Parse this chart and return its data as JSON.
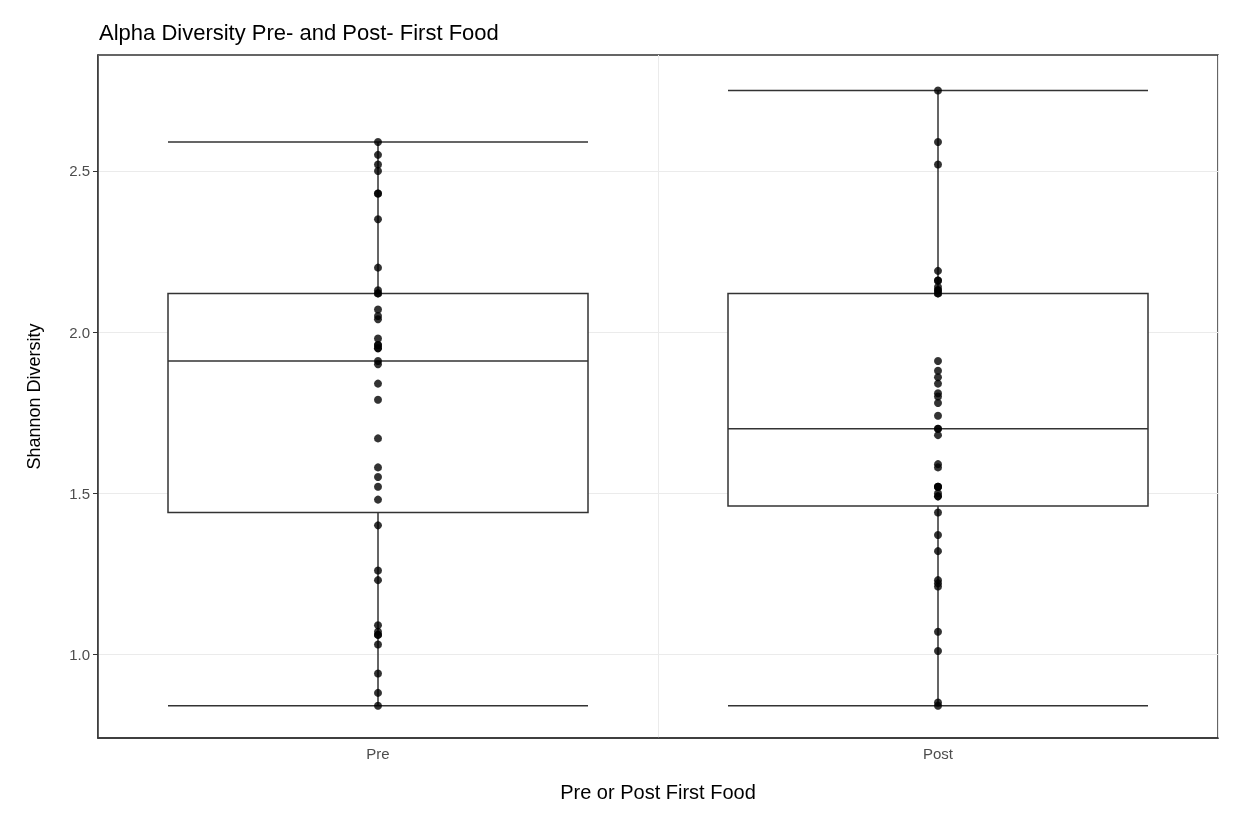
{
  "chart_data": {
    "type": "box",
    "title": "Alpha Diversity Pre- and Post- First Food",
    "xlabel": "Pre or Post First Food",
    "ylabel": "Shannon Diversity",
    "categories": [
      "Pre",
      "Post"
    ],
    "ylim": [
      0.74,
      2.86
    ],
    "yticks": [
      {
        "value": 1,
        "label": "1.0"
      },
      {
        "value": 1.5,
        "label": "1.5"
      },
      {
        "value": 2,
        "label": "2.0"
      },
      {
        "value": 2.5,
        "label": "2.5"
      }
    ],
    "grid": true,
    "marker": "circle",
    "series": [
      {
        "type": "box",
        "color": "#333333",
        "boxes": [
          {
            "low": 0.84,
            "q1": 1.44,
            "median": 1.91,
            "q3": 2.12,
            "high": 2.59
          },
          {
            "low": 0.84,
            "q1": 1.46,
            "median": 1.7,
            "q3": 2.12,
            "high": 2.75
          }
        ]
      },
      {
        "type": "scatter",
        "color": "#000000",
        "x": [
          "Pre",
          "Pre",
          "Pre",
          "Pre",
          "Pre",
          "Pre",
          "Pre",
          "Pre",
          "Pre",
          "Pre",
          "Pre",
          "Pre",
          "Pre",
          "Pre",
          "Pre",
          "Pre",
          "Pre",
          "Pre",
          "Pre",
          "Pre",
          "Pre",
          "Pre",
          "Pre",
          "Pre",
          "Pre",
          "Pre",
          "Pre",
          "Pre",
          "Pre",
          "Pre",
          "Pre",
          "Pre",
          "Pre",
          "Pre",
          "Pre",
          "Pre",
          "Pre",
          "Pre",
          "Pre",
          "Post",
          "Post",
          "Post",
          "Post",
          "Post",
          "Post",
          "Post",
          "Post",
          "Post",
          "Post",
          "Post",
          "Post",
          "Post",
          "Post",
          "Post",
          "Post",
          "Post",
          "Post",
          "Post",
          "Post",
          "Post",
          "Post",
          "Post",
          "Post",
          "Post",
          "Post",
          "Post",
          "Post",
          "Post",
          "Post",
          "Post",
          "Post",
          "Post",
          "Post",
          "Post",
          "Post",
          "Post",
          "Post",
          "Post",
          "Post"
        ],
        "values": [
          2.52,
          2.43,
          2.59,
          2.5,
          2.43,
          2.55,
          2.35,
          2.2,
          2.12,
          2.13,
          2.12,
          2.07,
          1.98,
          1.95,
          1.96,
          1.95,
          1.9,
          1.96,
          1.91,
          2.04,
          2.05,
          1.84,
          1.79,
          1.67,
          1.55,
          1.52,
          1.58,
          1.48,
          1.4,
          1.26,
          1.23,
          1.09,
          1.06,
          1.07,
          1.06,
          1.03,
          0.94,
          0.84,
          0.88,
          2.75,
          2.59,
          2.52,
          2.13,
          2.16,
          2.12,
          2.14,
          2.13,
          2.16,
          2.19,
          2.12,
          1.91,
          1.88,
          1.84,
          1.86,
          1.81,
          1.8,
          1.78,
          1.74,
          1.7,
          1.7,
          1.68,
          1.59,
          1.58,
          1.52,
          1.52,
          1.52,
          1.5,
          1.49,
          1.49,
          1.44,
          1.37,
          1.32,
          1.23,
          1.22,
          1.21,
          1.07,
          1.01,
          0.85,
          0.84
        ]
      }
    ]
  }
}
